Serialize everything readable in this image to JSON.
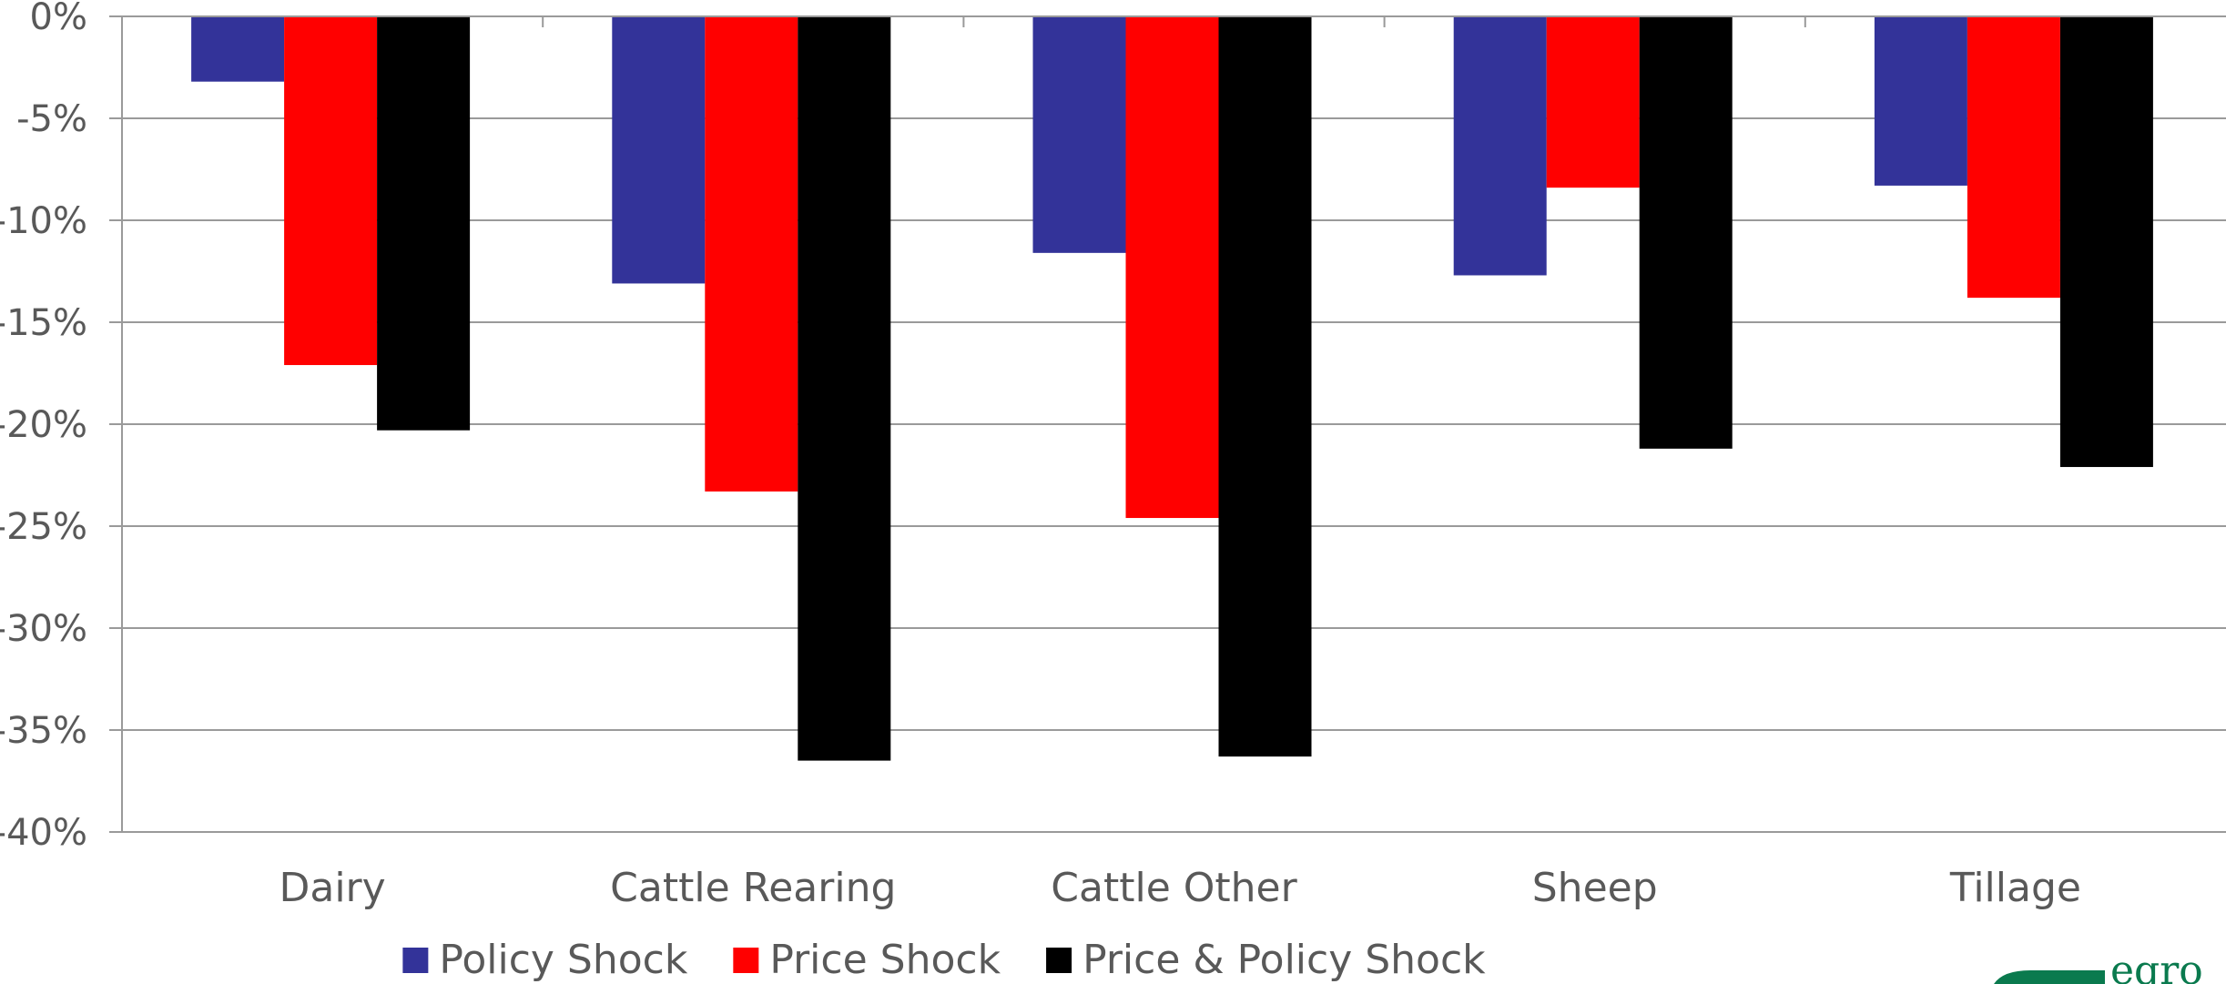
{
  "chart_data": {
    "type": "bar",
    "categories": [
      "Dairy",
      "Cattle Rearing",
      "Cattle Other",
      "Sheep",
      "Tillage"
    ],
    "series": [
      {
        "name": "Policy Shock",
        "color": "#333399",
        "values": [
          -3.2,
          -13.1,
          -11.6,
          -12.7,
          -8.3
        ]
      },
      {
        "name": "Price Shock",
        "color": "#ff0000",
        "values": [
          -17.1,
          -23.3,
          -24.6,
          -8.4,
          -13.8
        ]
      },
      {
        "name": "Price & Policy Shock",
        "color": "#000000",
        "values": [
          -20.3,
          -36.5,
          -36.3,
          -21.2,
          -22.1
        ]
      }
    ],
    "ylim": [
      -40,
      0
    ],
    "yticks": [
      0,
      -5,
      -10,
      -15,
      -20,
      -25,
      -30,
      -35,
      -40
    ],
    "ytick_labels": [
      "0%",
      "-5%",
      "-10%",
      "-15%",
      "-20%",
      "-25%",
      "-30%",
      "-35%",
      "-40%"
    ],
    "grid": true,
    "legend_position": "bottom",
    "title": "",
    "xlabel": "",
    "ylabel": ""
  },
  "logo": {
    "text": "egro",
    "color": "#0a7a4e"
  }
}
